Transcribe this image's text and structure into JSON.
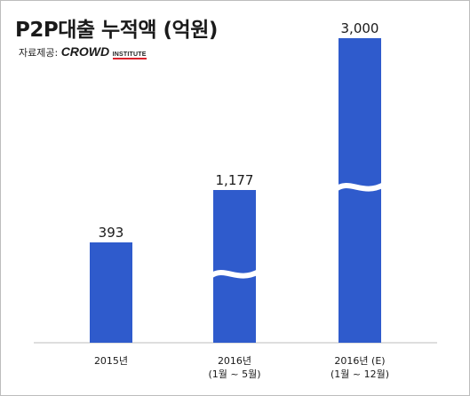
{
  "title": "P2P대출 누적액 (억원)",
  "source": {
    "label": "자료제공:",
    "brand": "CROWD",
    "brand_sub": "INSTITUTE",
    "accent_color": "#d9232d"
  },
  "chart_data": {
    "type": "bar",
    "title": "P2P대출 누적액 (억원)",
    "categories": [
      [
        "2015년"
      ],
      [
        "2016년",
        "(1월 ~ 5월)"
      ],
      [
        "2016년 (E)",
        "(1월 ~ 12월)"
      ]
    ],
    "values": [
      393,
      1177,
      3000
    ],
    "value_labels": [
      "393",
      "1,177",
      "3,000"
    ],
    "axis_break": [
      false,
      true,
      true
    ],
    "bar_color": "#2f5bcc",
    "grid": false,
    "legend": "none"
  }
}
